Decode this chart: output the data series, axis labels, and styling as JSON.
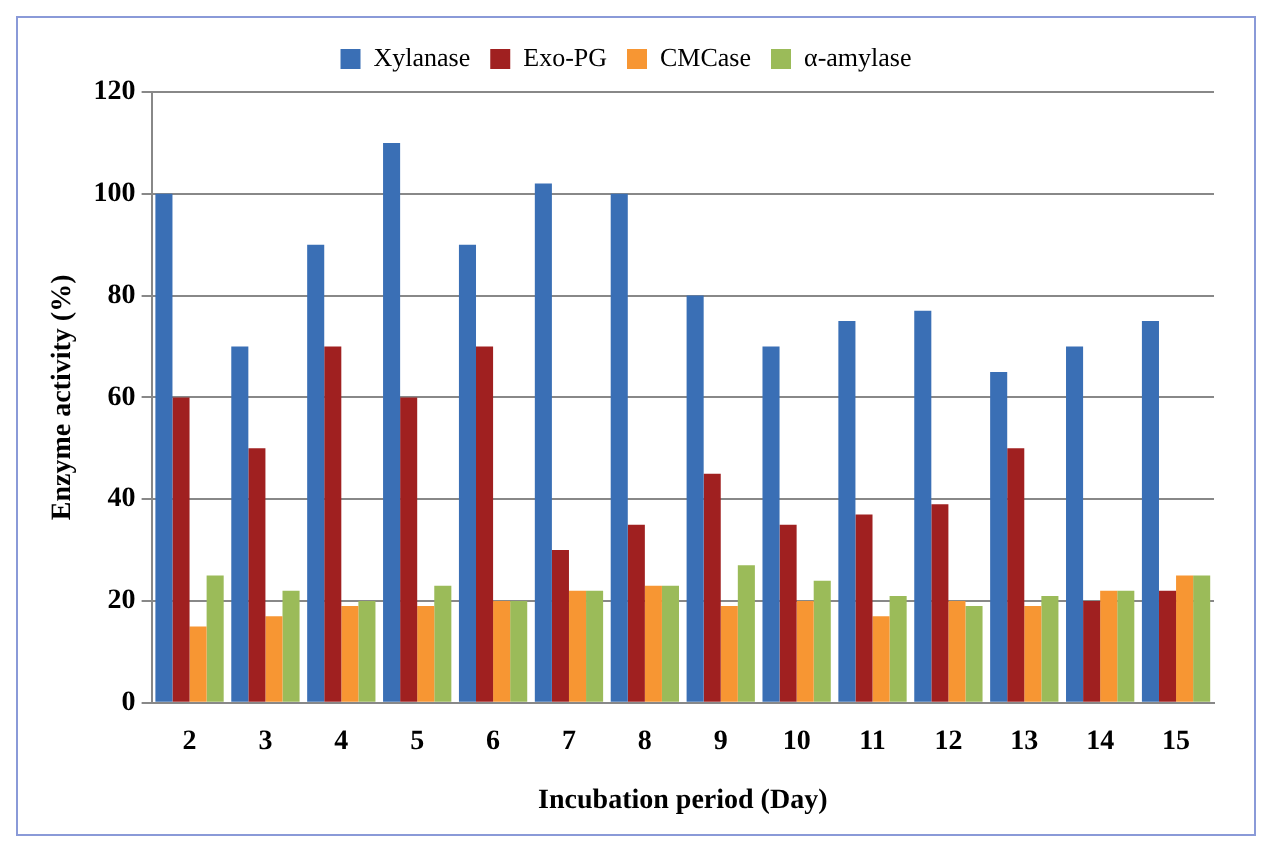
{
  "chart_data": {
    "type": "bar",
    "xlabel": "Incubation period (Day)",
    "ylabel": "Enzyme activity (%)",
    "categories": [
      "2",
      "3",
      "4",
      "5",
      "6",
      "7",
      "8",
      "9",
      "10",
      "11",
      "12",
      "13",
      "14",
      "15"
    ],
    "series": [
      {
        "name": "Xylanase",
        "color": "#3a6fb5",
        "values": [
          100,
          70,
          90,
          110,
          90,
          102,
          100,
          80,
          70,
          75,
          77,
          65,
          70,
          75
        ]
      },
      {
        "name": "Exo-PG",
        "color": "#a02020",
        "values": [
          60,
          50,
          70,
          60,
          70,
          30,
          35,
          45,
          35,
          37,
          39,
          50,
          20,
          22
        ]
      },
      {
        "name": "CMCase",
        "color": "#f79633",
        "values": [
          15,
          17,
          19,
          19,
          20,
          22,
          23,
          19,
          20,
          17,
          20,
          19,
          22,
          25
        ]
      },
      {
        "name": "α-amylase",
        "color": "#9bbb59",
        "values": [
          25,
          22,
          20,
          23,
          20,
          22,
          23,
          27,
          24,
          21,
          19,
          21,
          22,
          25
        ]
      }
    ],
    "ylim": [
      0,
      120
    ],
    "yticks": [
      0,
      20,
      40,
      60,
      80,
      100,
      120
    ],
    "grid": "y",
    "legend": "top"
  }
}
